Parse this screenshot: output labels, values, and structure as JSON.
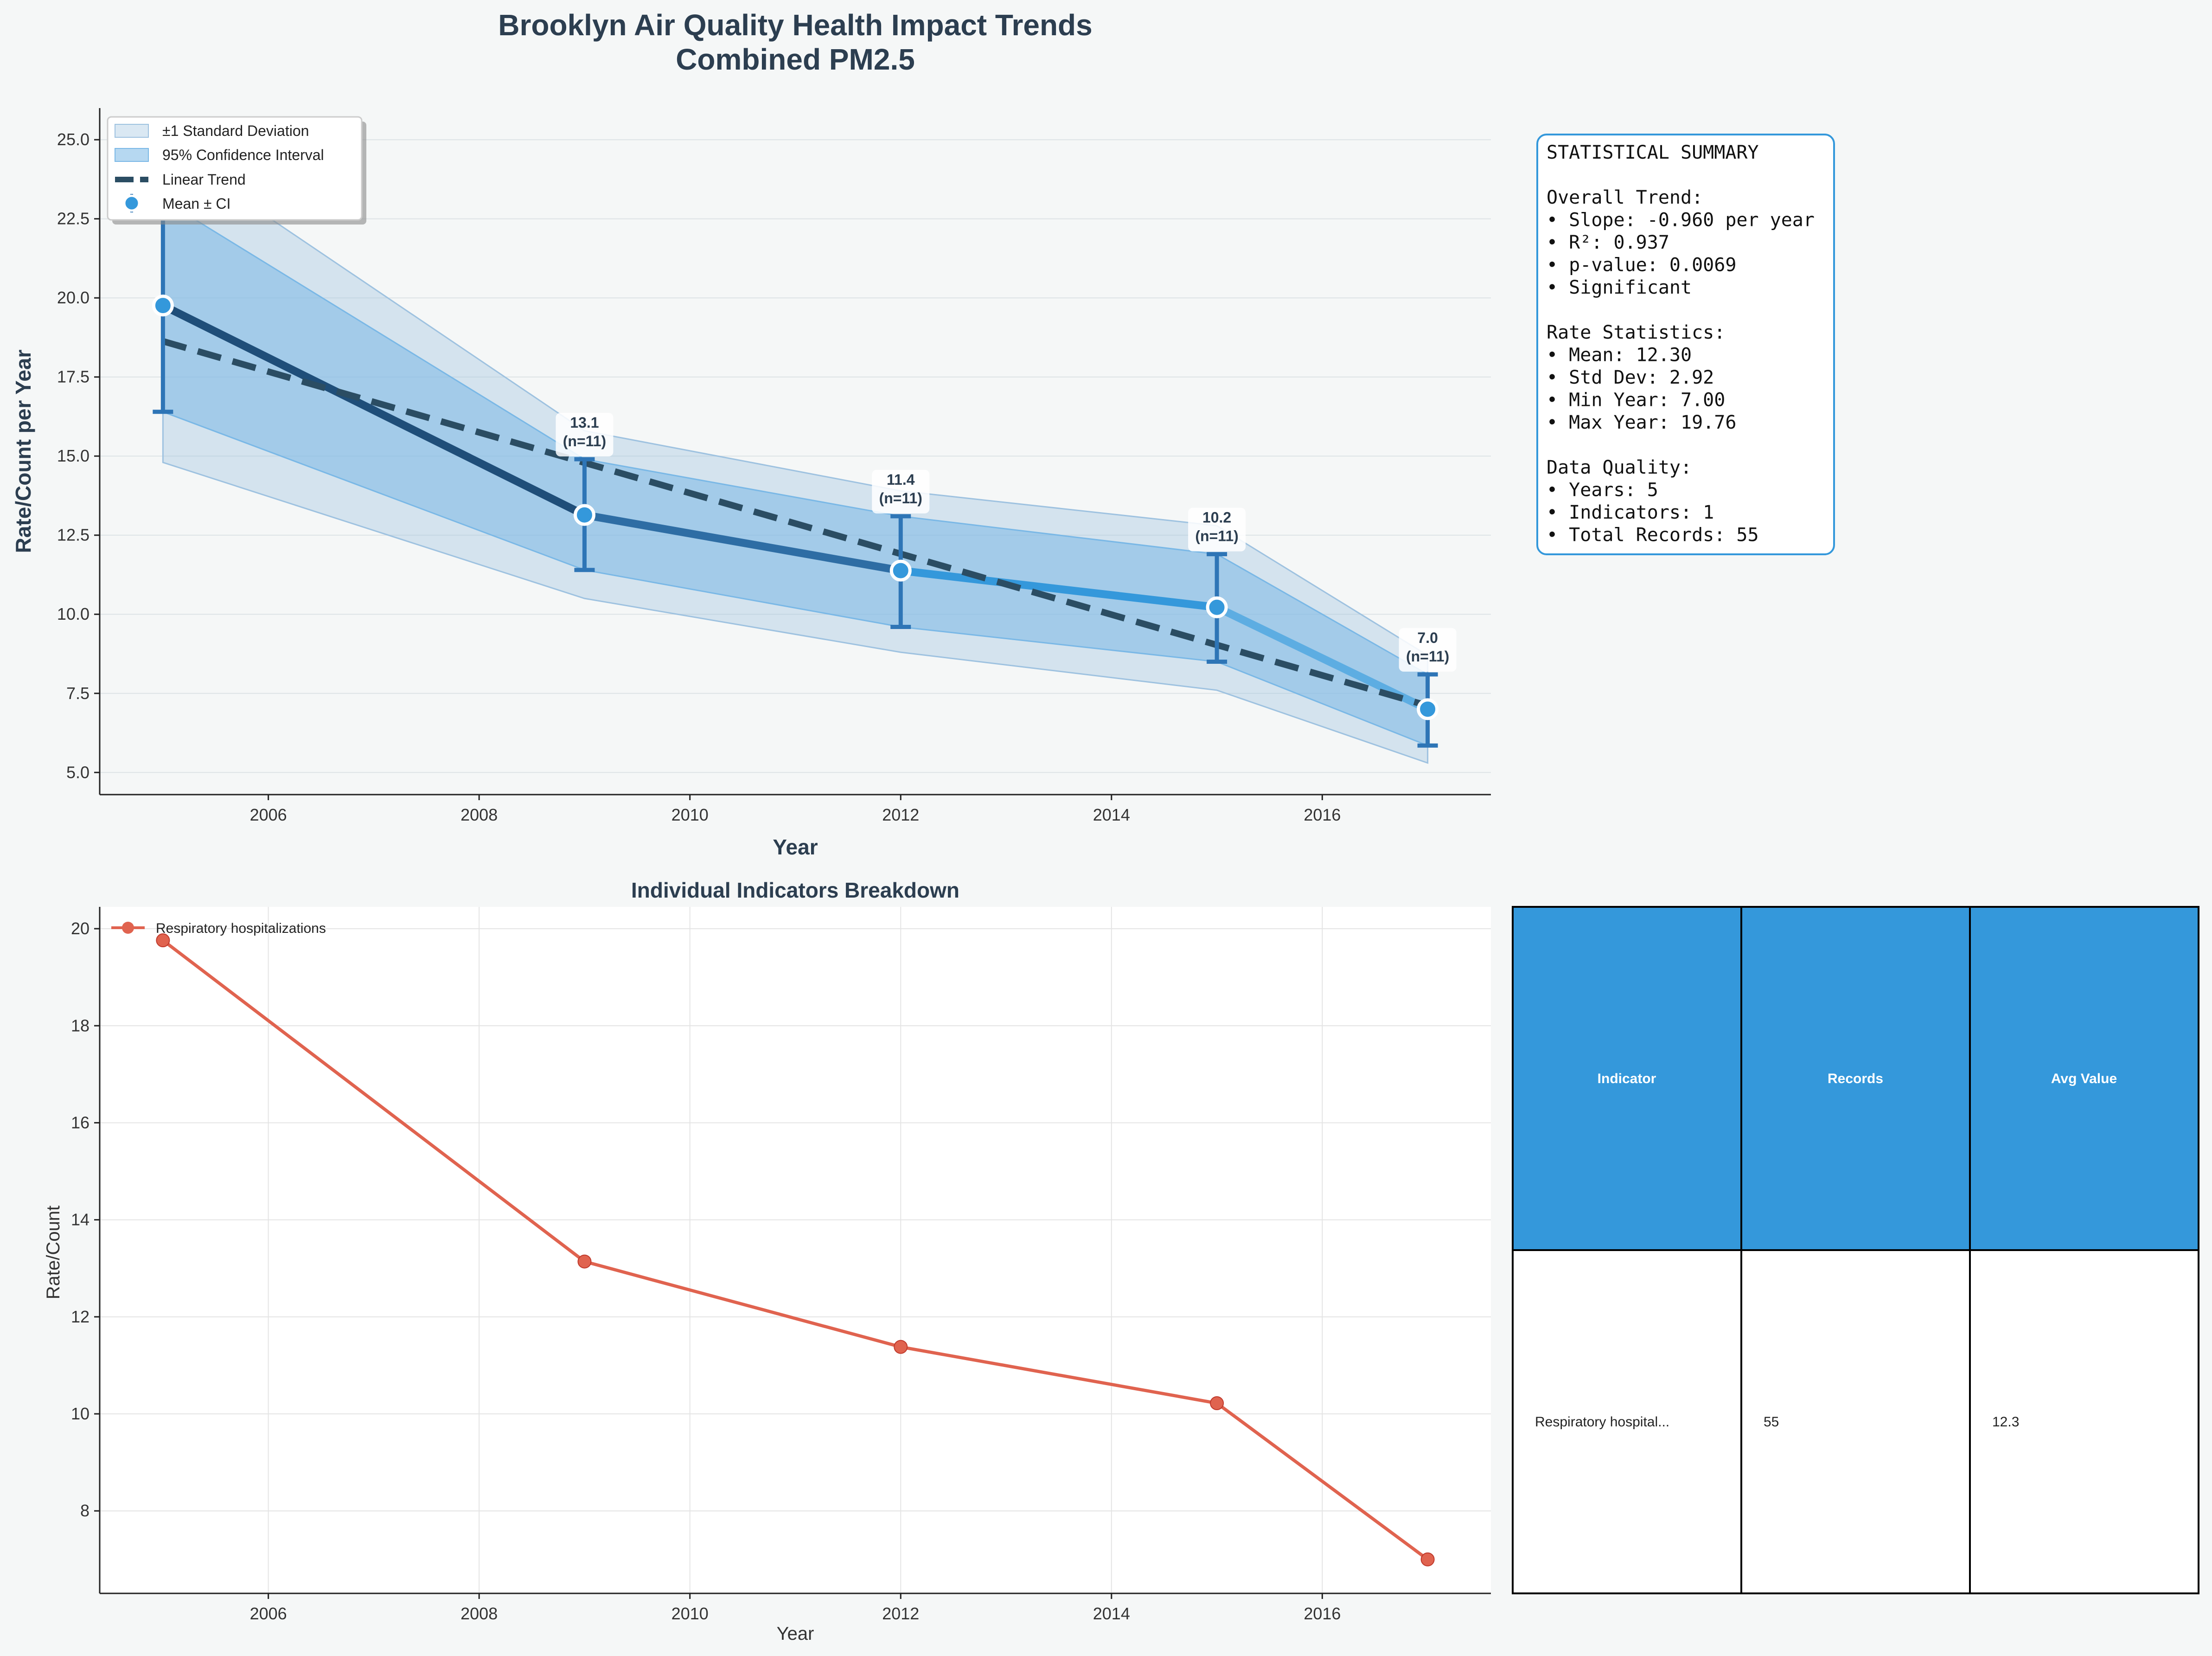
{
  "figure": {
    "title_line1": "Brooklyn Air Quality Health Impact Trends",
    "title_line2": "Combined PM2.5"
  },
  "colors": {
    "background": "#f5f7f7",
    "dark_blue": "#1f4e79",
    "mid_blue": "#3498db",
    "light_blue": "#5dade2",
    "errorbar": "#2e75b6",
    "ci_fill": "#7ab8e6",
    "sd_fill": "#9ec2e0",
    "trend": "#2b4d63",
    "red": "#e0634f",
    "table_header": "#3498db"
  },
  "chart_data": [
    {
      "type": "line",
      "title": "",
      "xlabel": "Year",
      "ylabel": "Rate/Count per Year",
      "xlim": [
        2004.4,
        2017.6
      ],
      "ylim": [
        4.3,
        26.0
      ],
      "xticks": [
        2006,
        2008,
        2010,
        2012,
        2014,
        2016
      ],
      "yticks": [
        5.0,
        7.5,
        10.0,
        12.5,
        15.0,
        17.5,
        20.0,
        22.5,
        25.0
      ],
      "grid": true,
      "legend_position": "top-left",
      "legend": [
        "±1 Standard Deviation",
        "95% Confidence Interval",
        "Linear Trend",
        "Mean ± CI"
      ],
      "x": [
        2005,
        2009,
        2012,
        2015,
        2017
      ],
      "mean": [
        19.76,
        13.14,
        11.38,
        10.22,
        7.0
      ],
      "ci_lower": [
        16.4,
        11.4,
        9.6,
        8.5,
        5.85
      ],
      "ci_upper": [
        23.1,
        14.9,
        13.1,
        11.9,
        8.1
      ],
      "sd_lower": [
        14.8,
        10.5,
        8.8,
        7.6,
        5.3
      ],
      "sd_upper": [
        24.8,
        15.8,
        13.9,
        12.8,
        8.7
      ],
      "trend": [
        18.63,
        14.79,
        11.91,
        9.03,
        7.11
      ],
      "point_labels": [
        "19.8",
        "13.1",
        "11.4",
        "10.2",
        "7.0"
      ],
      "n_label": "(n=11)"
    },
    {
      "type": "line",
      "title": "Individual Indicators Breakdown",
      "xlabel": "Year",
      "ylabel": "Rate/Count",
      "xlim": [
        2004.4,
        2017.6
      ],
      "ylim": [
        6.3,
        20.45
      ],
      "xticks": [
        2006,
        2008,
        2010,
        2012,
        2014,
        2016
      ],
      "yticks": [
        8,
        10,
        12,
        14,
        16,
        18,
        20
      ],
      "grid": true,
      "legend_position": "top-left",
      "series": [
        {
          "name": "Respiratory hospitalizations",
          "x": [
            2005,
            2009,
            2012,
            2015,
            2017
          ],
          "values": [
            19.76,
            13.14,
            11.38,
            10.22,
            7.0
          ]
        }
      ]
    }
  ],
  "summary_box": {
    "lines": [
      "STATISTICAL SUMMARY",
      "",
      "Overall Trend:",
      "• Slope: -0.960 per year",
      "• R²: 0.937",
      "• p-value: 0.0069",
      "• Significant",
      "",
      "Rate Statistics:",
      "• Mean: 12.30",
      "• Std Dev: 2.92",
      "• Min Year: 7.00",
      "• Max Year: 19.76",
      "",
      "Data Quality:",
      "• Years: 5",
      "• Indicators: 1",
      "• Total Records: 55"
    ]
  },
  "table": {
    "headers": [
      "Indicator",
      "Records",
      "Avg Value"
    ],
    "rows": [
      [
        "Respiratory hospital...",
        "55",
        "12.3"
      ]
    ]
  }
}
